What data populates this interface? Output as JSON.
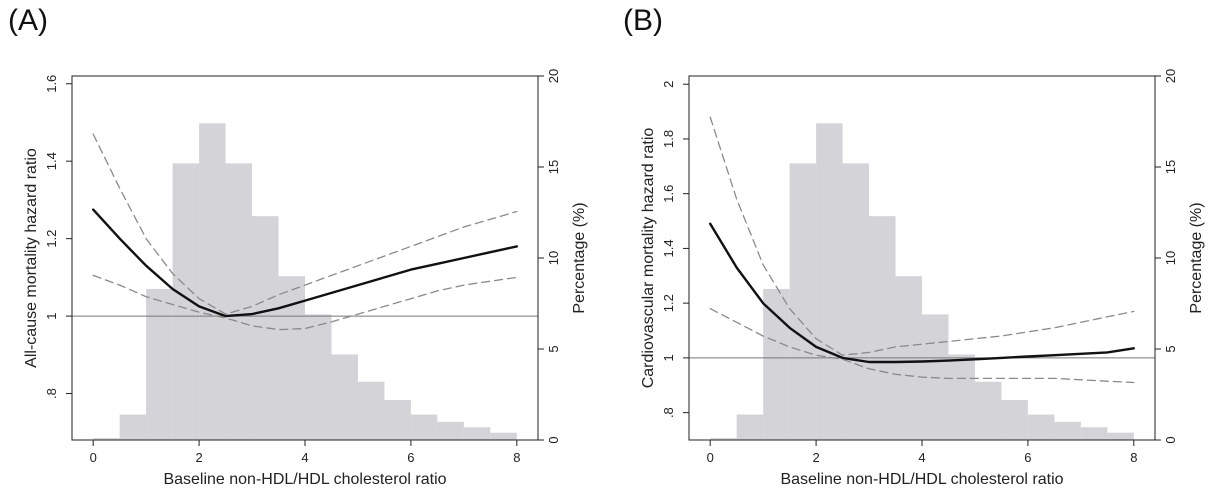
{
  "panels": [
    {
      "label": "(A)"
    },
    {
      "label": "(B)"
    }
  ],
  "colors": {
    "histogram_fill": "#d4d3d8",
    "hr_line": "#111111",
    "ci_line": "#8a8a8a",
    "reference_line": "#777777",
    "axis": "#222222"
  },
  "chart_data": [
    {
      "type": "line",
      "xlabel": "Baseline non-HDL/HDL cholesterol ratio",
      "ylabel": "All-cause mortality hazard ratio",
      "y2label": "Percentage (%)",
      "xlim": [
        -0.4,
        8.4
      ],
      "ylim": [
        0.68,
        1.62
      ],
      "y2lim": [
        0,
        20
      ],
      "xticks": [
        "0",
        "2",
        "4",
        "6",
        "8"
      ],
      "yticks": [
        ".8",
        "1",
        "1.2",
        "1.4",
        "1.6"
      ],
      "y2ticks": [
        "0",
        "5",
        "10",
        "15",
        "20"
      ],
      "reference_line_y": 1,
      "histogram": {
        "bin_edges": [
          0,
          0.5,
          1,
          1.5,
          2,
          2.5,
          3,
          3.5,
          4,
          4.5,
          5,
          5.5,
          6,
          6.5,
          7,
          7.5,
          8
        ],
        "percent": [
          0.1,
          1.4,
          8.3,
          15.2,
          17.4,
          15.2,
          12.3,
          9.0,
          6.9,
          4.7,
          3.2,
          2.2,
          1.4,
          1.0,
          0.7,
          0.4
        ]
      },
      "series": [
        {
          "role": "hazard_ratio",
          "x": [
            0,
            0.5,
            1,
            1.5,
            2,
            2.5,
            3,
            3.5,
            4,
            4.5,
            5,
            5.5,
            6,
            6.5,
            7,
            7.5,
            8
          ],
          "y": [
            1.275,
            1.2,
            1.13,
            1.07,
            1.025,
            1.0,
            1.005,
            1.02,
            1.04,
            1.06,
            1.08,
            1.1,
            1.12,
            1.135,
            1.15,
            1.165,
            1.18
          ]
        },
        {
          "role": "ci_upper",
          "x": [
            0,
            0.5,
            1,
            1.5,
            2,
            2.5,
            3,
            3.5,
            4,
            4.5,
            5,
            5.5,
            6,
            6.5,
            7,
            7.5,
            8
          ],
          "y": [
            1.47,
            1.33,
            1.2,
            1.11,
            1.045,
            1.005,
            1.025,
            1.055,
            1.08,
            1.105,
            1.13,
            1.155,
            1.18,
            1.205,
            1.23,
            1.25,
            1.27
          ]
        },
        {
          "role": "ci_lower",
          "x": [
            0,
            0.5,
            1,
            1.5,
            2,
            2.5,
            3,
            3.5,
            4,
            4.5,
            5,
            5.5,
            6,
            6.5,
            7,
            7.5,
            8
          ],
          "y": [
            1.105,
            1.08,
            1.05,
            1.03,
            1.01,
            0.995,
            0.975,
            0.965,
            0.968,
            0.985,
            1.005,
            1.025,
            1.045,
            1.065,
            1.08,
            1.09,
            1.1
          ]
        }
      ]
    },
    {
      "type": "line",
      "xlabel": "Baseline non-HDL/HDL cholesterol ratio",
      "ylabel": "Cardiovascular mortality hazard ratio",
      "y2label": "Percentage (%)",
      "xlim": [
        -0.4,
        8.4
      ],
      "ylim": [
        0.7,
        2.03
      ],
      "y2lim": [
        0,
        20
      ],
      "xticks": [
        "0",
        "2",
        "4",
        "6",
        "8"
      ],
      "yticks": [
        ".8",
        "1",
        "1.2",
        "1.4",
        "1.6",
        "1.8",
        "2"
      ],
      "y2ticks": [
        "0",
        "5",
        "10",
        "15",
        "20"
      ],
      "reference_line_y": 1,
      "histogram": {
        "bin_edges": [
          0,
          0.5,
          1,
          1.5,
          2,
          2.5,
          3,
          3.5,
          4,
          4.5,
          5,
          5.5,
          6,
          6.5,
          7,
          7.5,
          8
        ],
        "percent": [
          0.1,
          1.4,
          8.3,
          15.2,
          17.4,
          15.2,
          12.3,
          9.0,
          6.9,
          4.7,
          3.2,
          2.2,
          1.4,
          1.0,
          0.7,
          0.4
        ]
      },
      "series": [
        {
          "role": "hazard_ratio",
          "x": [
            0,
            0.5,
            1,
            1.5,
            2,
            2.5,
            3,
            3.5,
            4,
            4.5,
            5,
            5.5,
            6,
            6.5,
            7,
            7.5,
            8
          ],
          "y": [
            1.49,
            1.33,
            1.2,
            1.11,
            1.04,
            1.0,
            0.985,
            0.985,
            0.987,
            0.99,
            0.995,
            1.0,
            1.005,
            1.01,
            1.015,
            1.02,
            1.035
          ]
        },
        {
          "role": "ci_upper",
          "x": [
            0,
            0.5,
            1,
            1.5,
            2,
            2.5,
            3,
            3.5,
            4,
            4.5,
            5,
            5.5,
            6,
            6.5,
            7,
            7.5,
            8
          ],
          "y": [
            1.88,
            1.58,
            1.34,
            1.18,
            1.07,
            1.01,
            1.02,
            1.04,
            1.05,
            1.06,
            1.07,
            1.08,
            1.095,
            1.11,
            1.13,
            1.15,
            1.17
          ]
        },
        {
          "role": "ci_lower",
          "x": [
            0,
            0.5,
            1,
            1.5,
            2,
            2.5,
            3,
            3.5,
            4,
            4.5,
            5,
            5.5,
            6,
            6.5,
            7,
            7.5,
            8
          ],
          "y": [
            1.18,
            1.13,
            1.08,
            1.04,
            1.01,
            0.995,
            0.96,
            0.94,
            0.93,
            0.925,
            0.925,
            0.925,
            0.925,
            0.925,
            0.92,
            0.915,
            0.91
          ]
        }
      ]
    }
  ]
}
